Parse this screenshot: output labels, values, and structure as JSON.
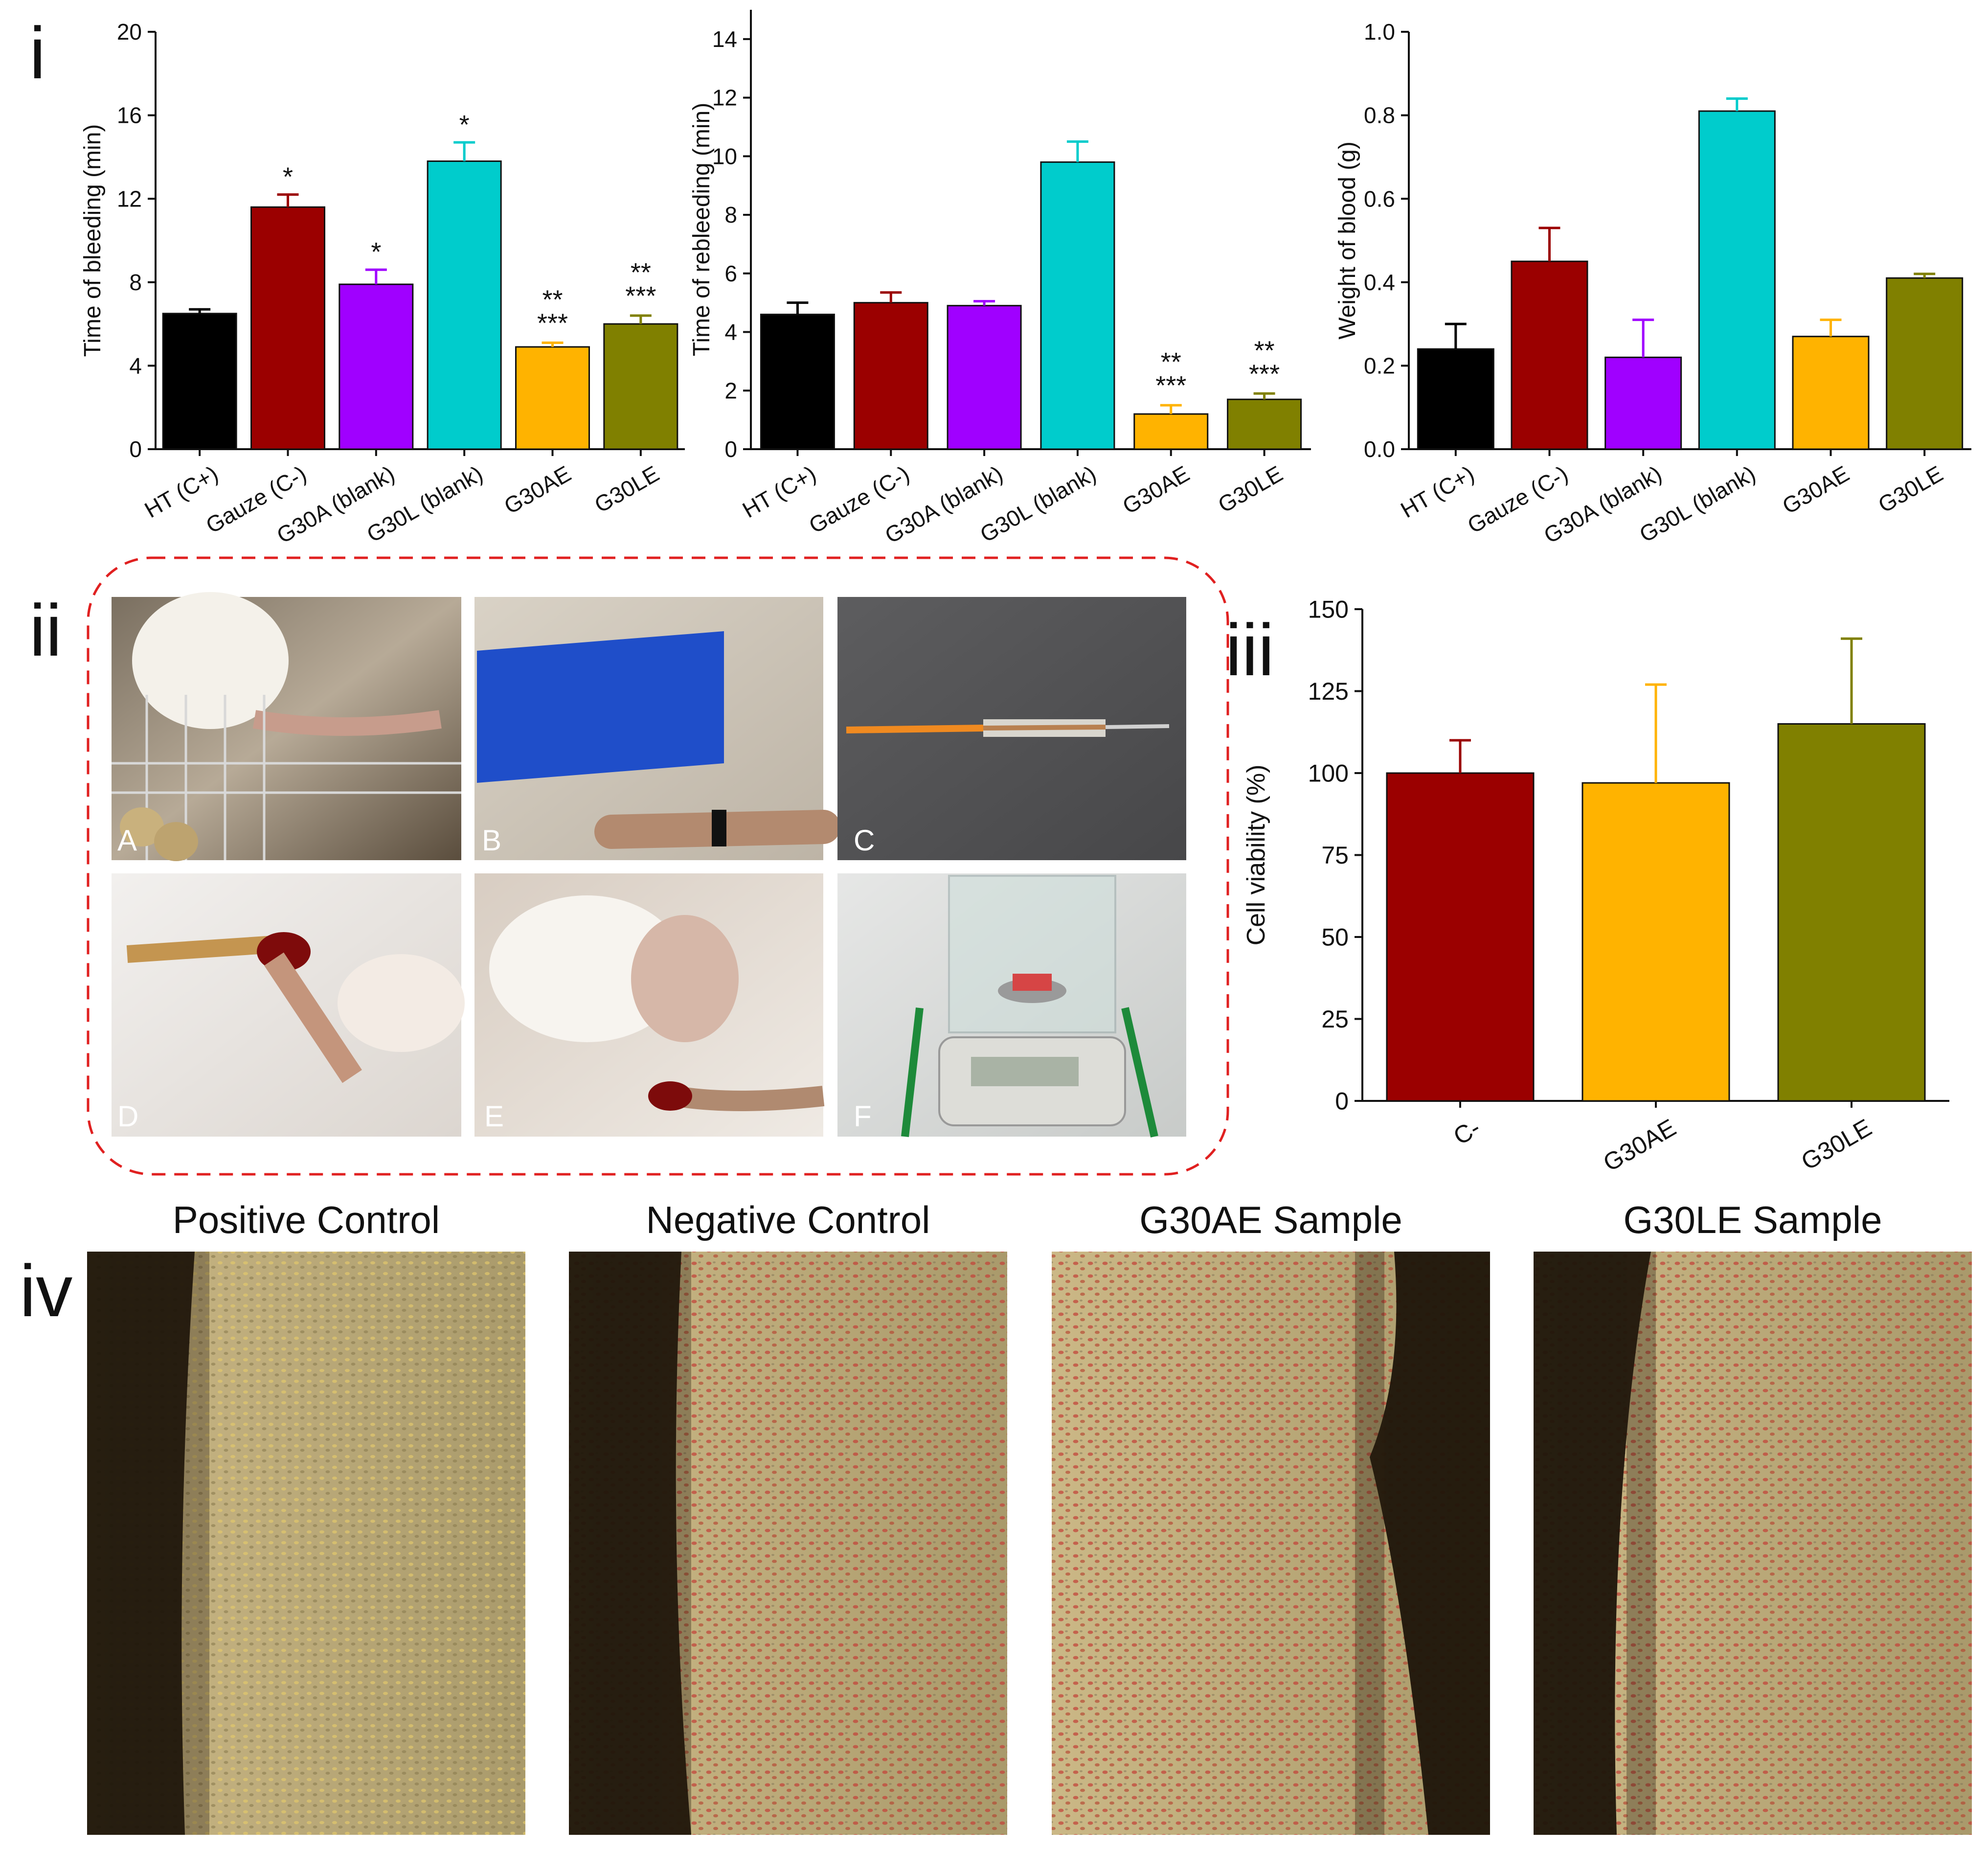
{
  "panel_labels": {
    "i": "i",
    "ii": "ii",
    "iii": "iii",
    "iv": "iv"
  },
  "colors": {
    "HT (C+)": "#000000",
    "Gauze (C-)": "#9b0000",
    "G30A (blank)": "#a000ff",
    "G30L (blank)": "#00cccc",
    "G30AE": "#ffb300",
    "G30LE": "#808000",
    "C-": "#9b0000"
  },
  "chart_data": [
    {
      "type": "bar",
      "id": "bleeding",
      "categories": [
        "HT (C+)",
        "Gauze (C-)",
        "G30A (blank)",
        "G30L (blank)",
        "G30AE",
        "G30LE"
      ],
      "values": [
        6.5,
        11.6,
        7.9,
        13.8,
        4.9,
        6.0
      ],
      "errors": [
        0.2,
        0.6,
        0.7,
        0.9,
        0.2,
        0.4
      ],
      "annotations": [
        [
          "",
          ""
        ],
        [
          "*",
          ""
        ],
        [
          "*",
          ""
        ],
        [
          "*",
          ""
        ],
        [
          "**",
          "***"
        ],
        [
          "**",
          "***"
        ]
      ],
      "ylabel": "Time of bleeding (min)",
      "ylim": [
        0,
        20
      ],
      "yticks": [
        0,
        4,
        8,
        12,
        16,
        20
      ],
      "ytick_labels": [
        "0",
        "4",
        "8",
        "12",
        "16",
        "20"
      ]
    },
    {
      "type": "bar",
      "id": "rebleeding",
      "categories": [
        "HT (C+)",
        "Gauze (C-)",
        "G30A (blank)",
        "G30L (blank)",
        "G30AE",
        "G30LE"
      ],
      "values": [
        4.6,
        5.0,
        4.9,
        9.8,
        1.2,
        1.7
      ],
      "errors": [
        0.4,
        0.35,
        0.15,
        0.7,
        0.3,
        0.2
      ],
      "annotations": [
        [
          "",
          ""
        ],
        [
          "",
          ""
        ],
        [
          "",
          ""
        ],
        [
          "",
          ""
        ],
        [
          "**",
          "***"
        ],
        [
          "**",
          "***"
        ]
      ],
      "ylabel": "Time of rebleeding (min)",
      "ylim": [
        0,
        15
      ],
      "yticks": [
        0,
        2,
        4,
        6,
        8,
        10,
        12,
        14
      ],
      "ytick_labels": [
        "0",
        "2",
        "4",
        "6",
        "8",
        "10",
        "12",
        "14"
      ]
    },
    {
      "type": "bar",
      "id": "weight",
      "categories": [
        "HT (C+)",
        "Gauze (C-)",
        "G30A (blank)",
        "G30L (blank)",
        "G30AE",
        "G30LE"
      ],
      "values": [
        0.24,
        0.45,
        0.22,
        0.81,
        0.27,
        0.41
      ],
      "errors": [
        0.06,
        0.08,
        0.09,
        0.03,
        0.04,
        0.01
      ],
      "annotations": [
        [
          "",
          ""
        ],
        [
          "",
          ""
        ],
        [
          "",
          ""
        ],
        [
          "",
          ""
        ],
        [
          "",
          ""
        ],
        [
          "",
          ""
        ]
      ],
      "ylabel": "Weight of blood (g)",
      "ylim": [
        0,
        1.0
      ],
      "yticks": [
        0,
        0.2,
        0.4,
        0.6,
        0.8,
        1.0
      ],
      "ytick_labels": [
        "0.0",
        "0.2",
        "0.4",
        "0.6",
        "0.8",
        "1.0"
      ]
    },
    {
      "type": "bar",
      "id": "viability",
      "categories": [
        "C-",
        "G30AE",
        "G30LE"
      ],
      "values": [
        100,
        97,
        115
      ],
      "errors": [
        10,
        30,
        26
      ],
      "annotations": [
        [
          "",
          ""
        ],
        [
          "",
          ""
        ],
        [
          "",
          ""
        ]
      ],
      "ylabel": "Cell viability (%)",
      "ylim": [
        0,
        150
      ],
      "yticks": [
        0,
        25,
        50,
        75,
        100,
        125,
        150
      ],
      "ytick_labels": [
        "0",
        "25",
        "50",
        "75",
        "100",
        "125",
        "150"
      ]
    }
  ],
  "photos": [
    "A",
    "B",
    "C",
    "D",
    "E",
    "F"
  ],
  "micrographs": [
    {
      "title": "Positive Control",
      "stain": "yellow"
    },
    {
      "title": "Negative Control",
      "stain": "red"
    },
    {
      "title": "G30AE Sample",
      "stain": "red"
    },
    {
      "title": "G30LE Sample",
      "stain": "red"
    }
  ]
}
